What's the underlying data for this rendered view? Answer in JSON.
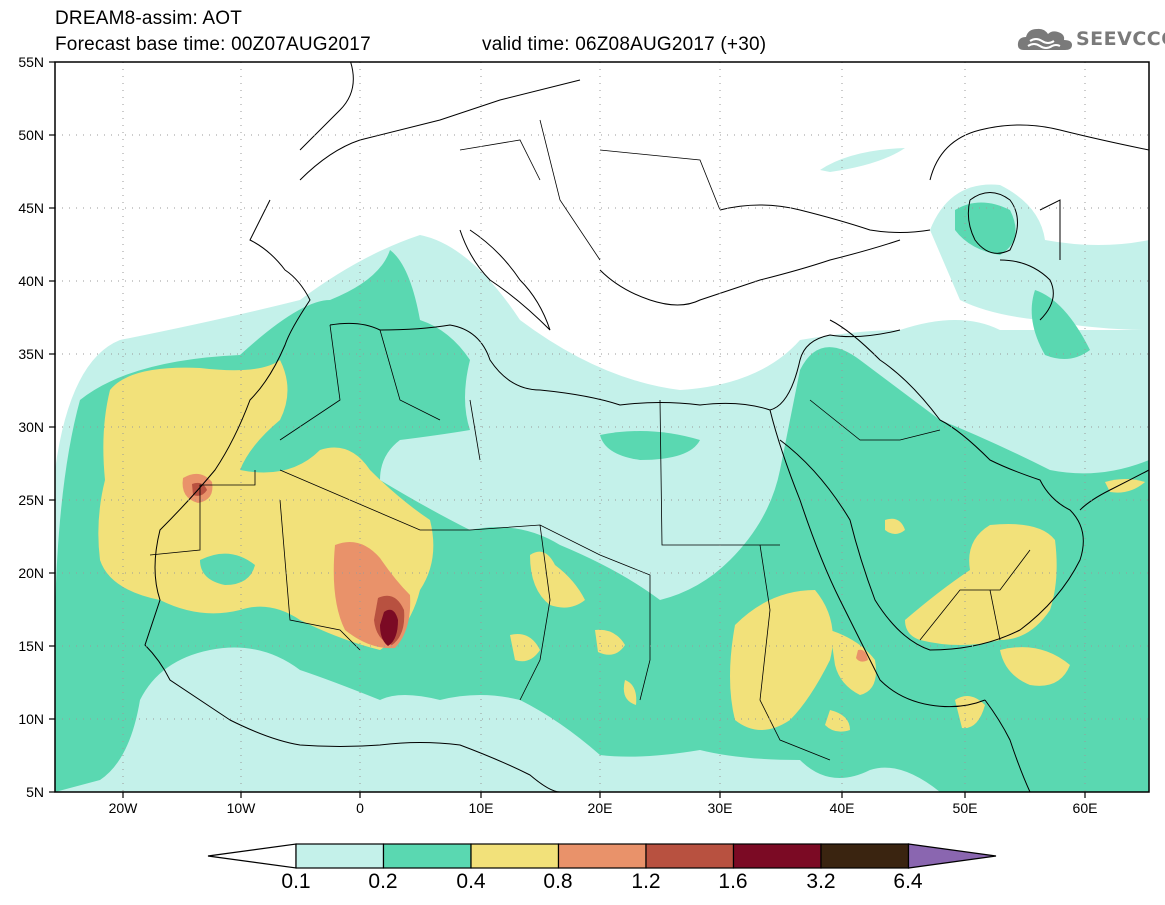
{
  "title": {
    "line1": "DREAM8-assim: AOT",
    "base_time": "Forecast base time: 00Z07AUG2017",
    "valid_time": "valid time: 06Z08AUG2017 (+30)"
  },
  "logo": {
    "text": "SEEVCCC",
    "icon": "cloud-icon"
  },
  "lat_labels": [
    "55N",
    "50N",
    "45N",
    "40N",
    "35N",
    "30N",
    "25N",
    "20N",
    "15N",
    "10N",
    "5N"
  ],
  "lon_labels": [
    "20W",
    "10W",
    "0",
    "10E",
    "20E",
    "30E",
    "40E",
    "50E",
    "60E"
  ],
  "legend": {
    "levels": [
      "0.1",
      "0.2",
      "0.4",
      "0.8",
      "1.2",
      "1.6",
      "3.2",
      "6.4"
    ],
    "colors": [
      "#ffffff",
      "#c4f1ea",
      "#5ad8b1",
      "#f2e17a",
      "#e9926a",
      "#b85140",
      "#7b0a24",
      "#3a2410",
      "#8a66b0"
    ]
  }
}
